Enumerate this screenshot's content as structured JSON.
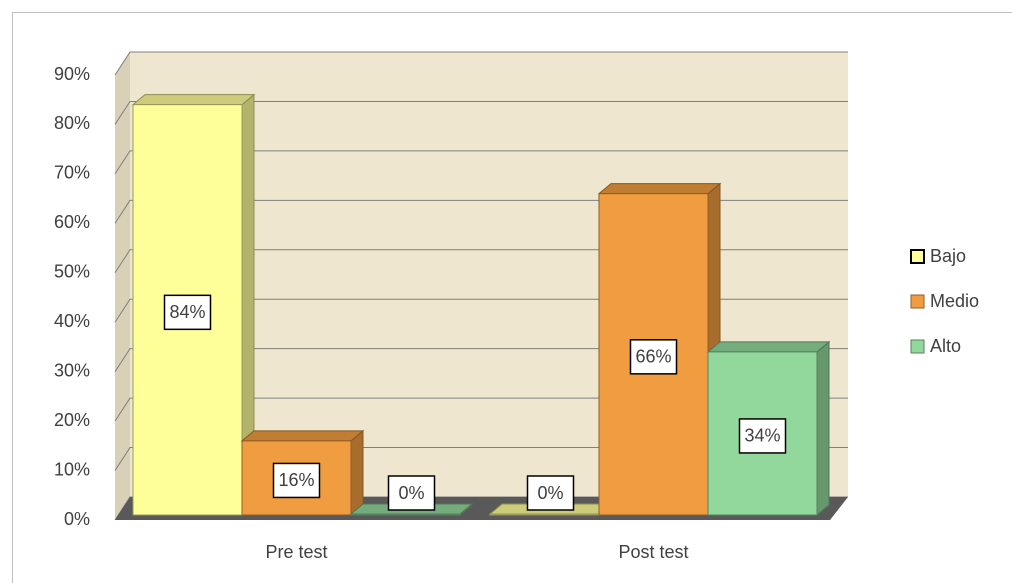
{
  "chart_data": {
    "type": "bar3d",
    "categories": [
      "Pre test",
      "Post test"
    ],
    "series": [
      {
        "name": "Bajo",
        "color": "#ffff99",
        "values": [
          84,
          0
        ],
        "value_labels": [
          "84%",
          "0%"
        ]
      },
      {
        "name": "Medio",
        "color": "#f09c40",
        "values": [
          16,
          66
        ],
        "value_labels": [
          "16%",
          "66%"
        ]
      },
      {
        "name": "Alto",
        "color": "#92d79c",
        "values": [
          0,
          34
        ],
        "value_labels": [
          "0%",
          "34%"
        ]
      }
    ],
    "ylim": [
      0,
      90
    ],
    "yticks": [
      {
        "value": 0,
        "label": "0%"
      },
      {
        "value": 10,
        "label": "10%"
      },
      {
        "value": 20,
        "label": "20%"
      },
      {
        "value": 30,
        "label": "30%"
      },
      {
        "value": 40,
        "label": "40%"
      },
      {
        "value": 50,
        "label": "50%"
      },
      {
        "value": 60,
        "label": "60%"
      },
      {
        "value": 70,
        "label": "70%"
      },
      {
        "value": 80,
        "label": "80%"
      },
      {
        "value": 90,
        "label": "90%"
      }
    ],
    "grid": true,
    "legend": "right"
  }
}
